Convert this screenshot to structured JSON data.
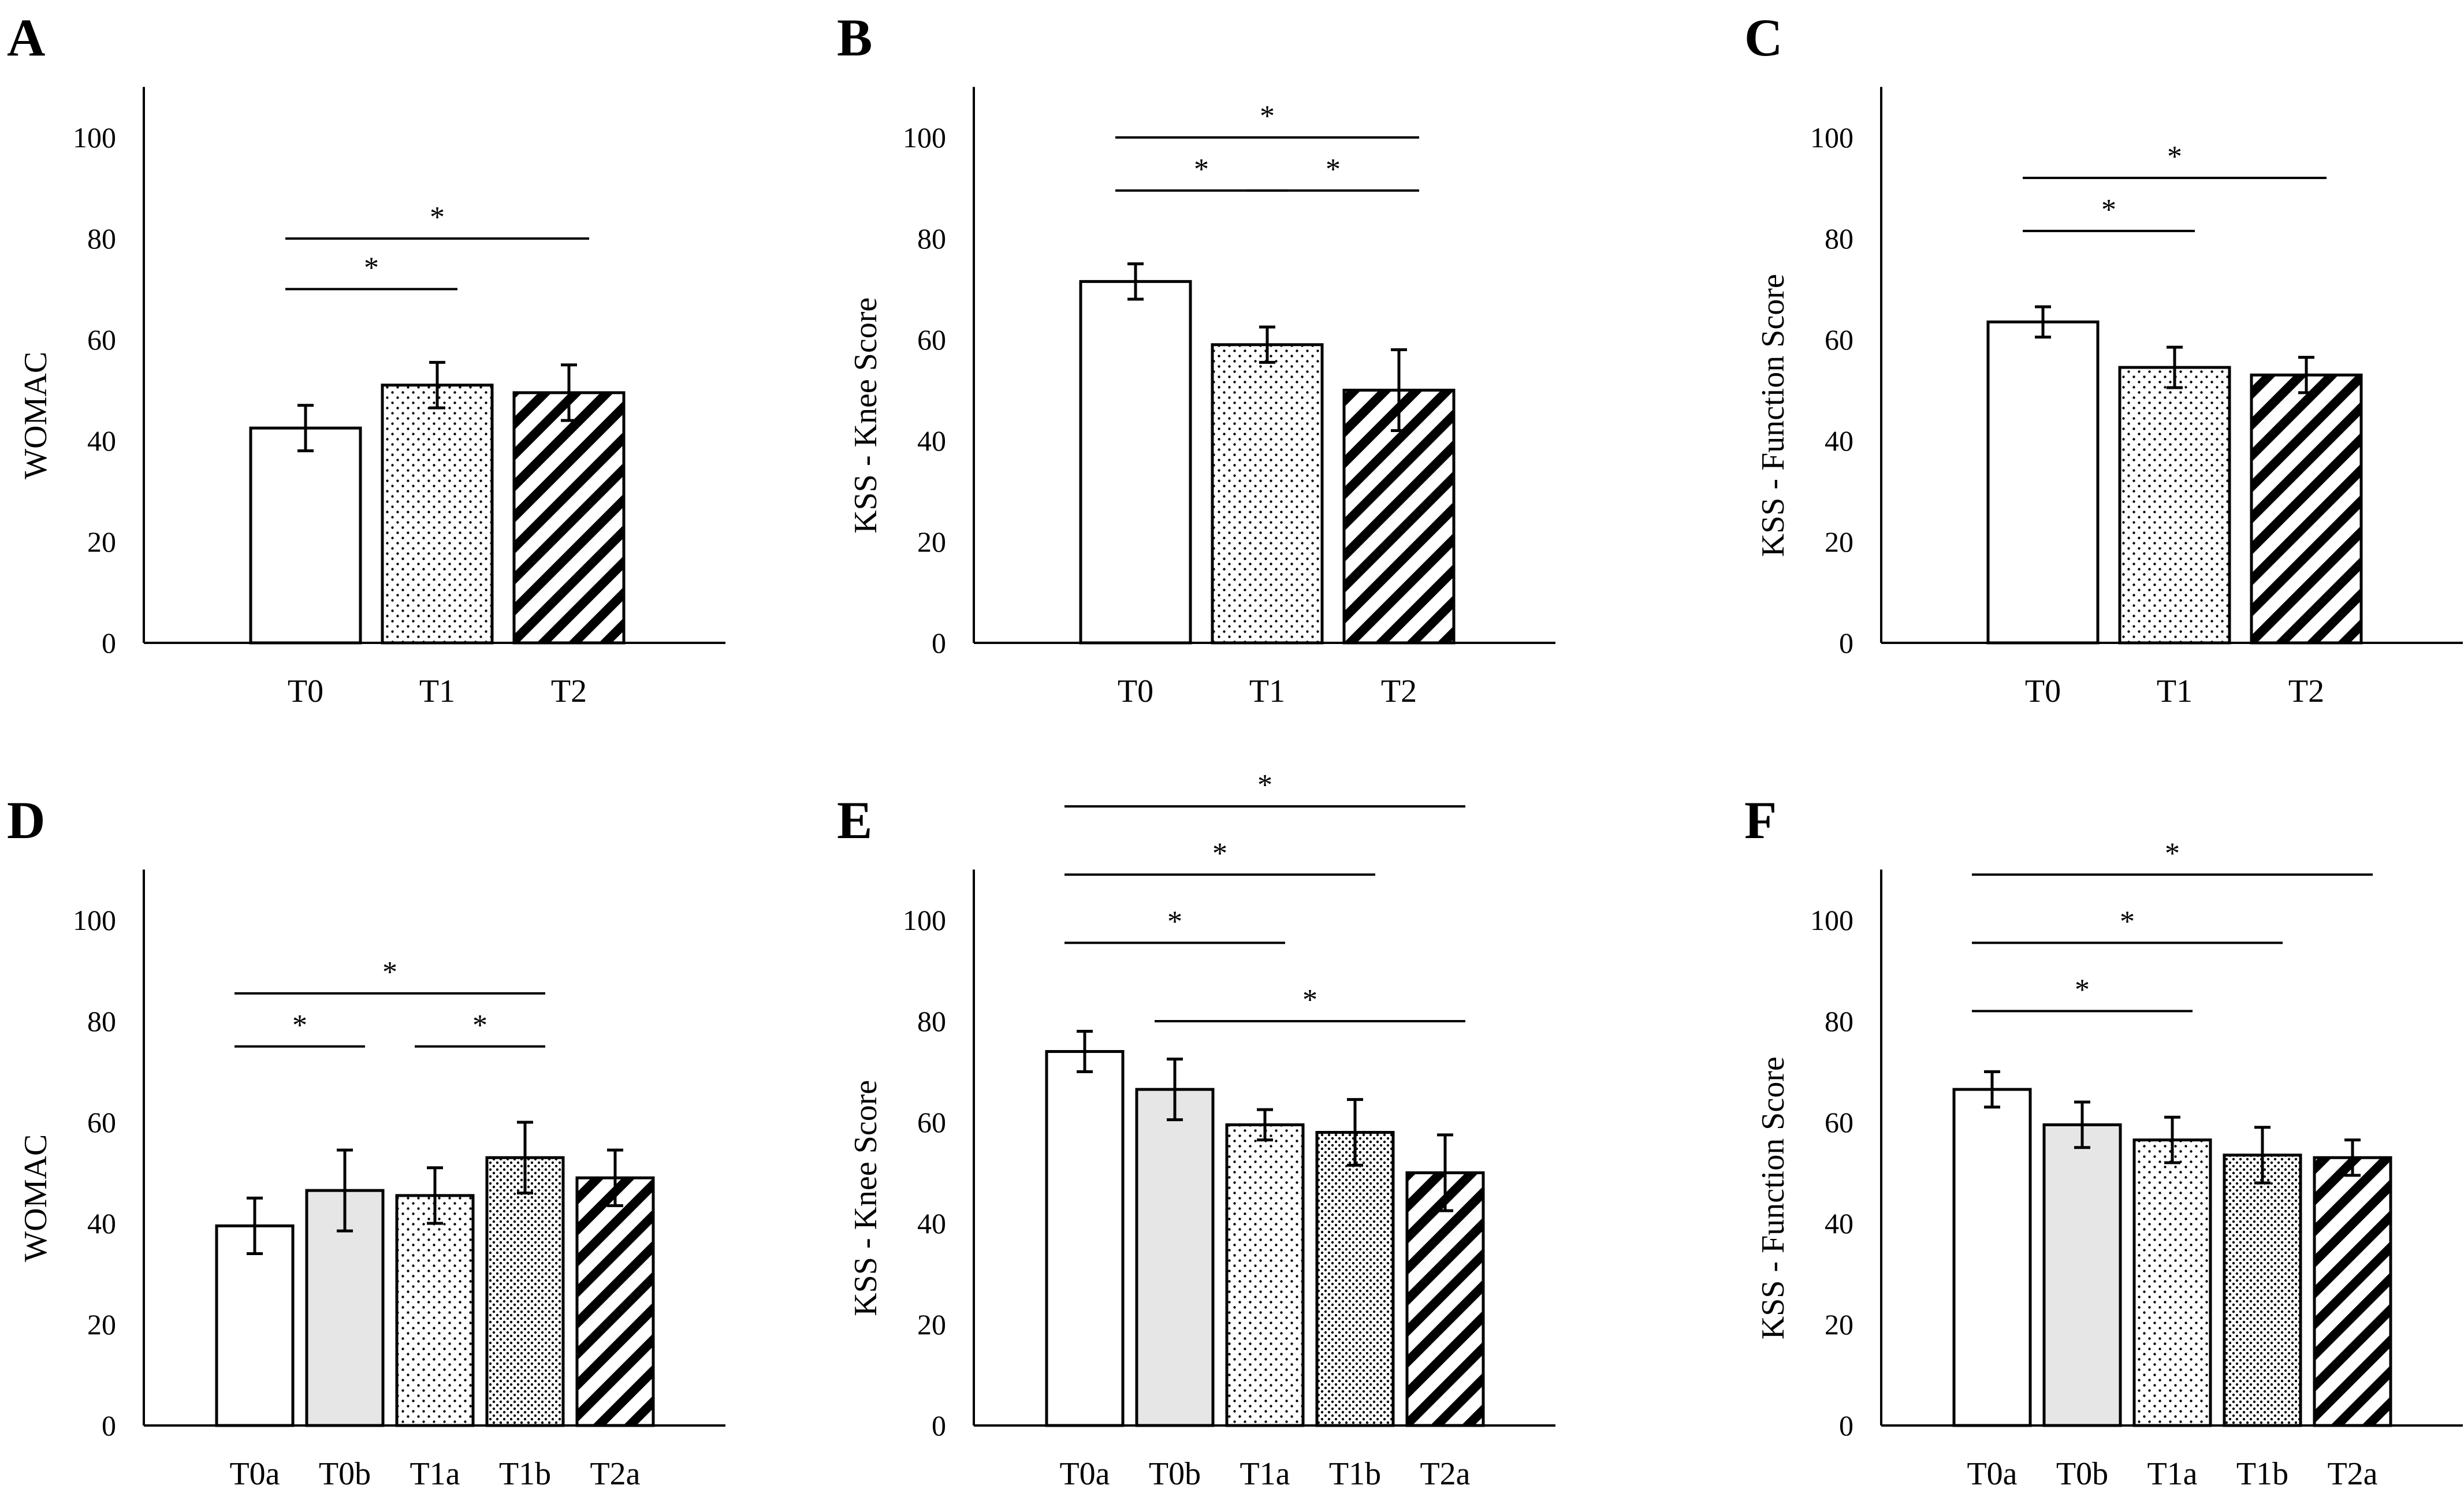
{
  "figure": {
    "panel_count": 6,
    "bar_fill": "#ffffff",
    "gray_fill": "#e6e6e6",
    "ink": "#000000"
  },
  "chart_data": [
    {
      "type": "bar",
      "panel_label": "A",
      "title": "",
      "xlabel": "",
      "ylabel": "WOMAC",
      "ylim": [
        0,
        110
      ],
      "yticks": [
        0,
        20,
        40,
        60,
        80,
        100
      ],
      "grid": false,
      "categories": [
        "T0",
        "T1",
        "T2"
      ],
      "patterns": [
        "plain",
        "dots",
        "hatch"
      ],
      "values": [
        42.5,
        51,
        49.5
      ],
      "errors": [
        4.5,
        4.5,
        5.5
      ],
      "significance": [
        {
          "from": 0,
          "to": 1,
          "label": "*",
          "level": 70
        },
        {
          "from": 0,
          "to": 2,
          "label": "*",
          "level": 80
        }
      ]
    },
    {
      "type": "bar",
      "panel_label": "B",
      "title": "",
      "xlabel": "",
      "ylabel": "KSS - Knee Score",
      "ylim": [
        0,
        110
      ],
      "yticks": [
        0,
        20,
        40,
        60,
        80,
        100
      ],
      "grid": false,
      "categories": [
        "T0",
        "T1",
        "T2"
      ],
      "patterns": [
        "plain",
        "dots",
        "hatch"
      ],
      "values": [
        71.5,
        59,
        50
      ],
      "errors": [
        3.5,
        3.5,
        8
      ],
      "significance": [
        {
          "from": 0,
          "to": 1,
          "label": "*",
          "level": 89.5
        },
        {
          "from": 1,
          "to": 2,
          "label": "*",
          "level": 89.5
        },
        {
          "from": 0,
          "to": 2,
          "label": "*",
          "level": 100
        }
      ]
    },
    {
      "type": "bar",
      "panel_label": "C",
      "title": "",
      "xlabel": "",
      "ylabel": "KSS - Function Score",
      "ylim": [
        0,
        110
      ],
      "yticks": [
        0,
        20,
        40,
        60,
        80,
        100
      ],
      "grid": false,
      "categories": [
        "T0",
        "T1",
        "T2"
      ],
      "patterns": [
        "plain",
        "dots",
        "hatch"
      ],
      "values": [
        63.5,
        54.5,
        53
      ],
      "errors": [
        3,
        4,
        3.5
      ],
      "significance": [
        {
          "from": 0,
          "to": 1,
          "label": "*",
          "level": 81.5
        },
        {
          "from": 0,
          "to": 2,
          "label": "*",
          "level": 92
        }
      ]
    },
    {
      "type": "bar",
      "panel_label": "D",
      "title": "",
      "xlabel": "",
      "ylabel": "WOMAC",
      "ylim": [
        0,
        110
      ],
      "yticks": [
        0,
        20,
        40,
        60,
        80,
        100
      ],
      "grid": false,
      "categories": [
        "T0a",
        "T0b",
        "T1a",
        "T1b",
        "T2a"
      ],
      "patterns": [
        "plain",
        "gray",
        "dots",
        "dense-dots",
        "hatch"
      ],
      "values": [
        39.5,
        46.5,
        45.5,
        53,
        49
      ],
      "errors": [
        5.5,
        8,
        5.5,
        7,
        5.5
      ],
      "significance": [
        {
          "from": 0,
          "to": 1,
          "label": "*",
          "level": 75
        },
        {
          "from": 2,
          "to": 3,
          "label": "*",
          "level": 75
        },
        {
          "from": 0,
          "to": 3,
          "label": "*",
          "level": 85.5
        }
      ]
    },
    {
      "type": "bar",
      "panel_label": "E",
      "title": "",
      "xlabel": "",
      "ylabel": "KSS - Knee Score",
      "ylim": [
        0,
        110
      ],
      "yticks": [
        0,
        20,
        40,
        60,
        80,
        100
      ],
      "grid": false,
      "categories": [
        "T0a",
        "T0b",
        "T1a",
        "T1b",
        "T2a"
      ],
      "patterns": [
        "plain",
        "gray",
        "dots",
        "dense-dots",
        "hatch"
      ],
      "values": [
        74,
        66.5,
        59.5,
        58,
        50
      ],
      "errors": [
        4,
        6,
        3,
        6.5,
        7.5
      ],
      "significance": [
        {
          "from": 1,
          "to": 4,
          "label": "*",
          "level": 80
        },
        {
          "from": 0,
          "to": 2,
          "label": "*",
          "level": 95.5
        },
        {
          "from": 0,
          "to": 3,
          "label": "*",
          "level": 109
        },
        {
          "from": 0,
          "to": 4,
          "label": "*",
          "level": 122.5
        }
      ]
    },
    {
      "type": "bar",
      "panel_label": "F",
      "title": "",
      "xlabel": "",
      "ylabel": "KSS - Function Score",
      "ylim": [
        0,
        110
      ],
      "yticks": [
        0,
        20,
        40,
        60,
        80,
        100
      ],
      "grid": false,
      "categories": [
        "T0a",
        "T0b",
        "T1a",
        "T1b",
        "T2a"
      ],
      "patterns": [
        "plain",
        "gray",
        "dots",
        "dense-dots",
        "hatch"
      ],
      "values": [
        66.5,
        59.5,
        56.5,
        53.5,
        53
      ],
      "errors": [
        3.5,
        4.5,
        4.5,
        5.5,
        3.5
      ],
      "significance": [
        {
          "from": 0,
          "to": 2,
          "label": "*",
          "level": 82
        },
        {
          "from": 0,
          "to": 3,
          "label": "*",
          "level": 95.5
        },
        {
          "from": 0,
          "to": 4,
          "label": "*",
          "level": 109
        }
      ]
    }
  ]
}
